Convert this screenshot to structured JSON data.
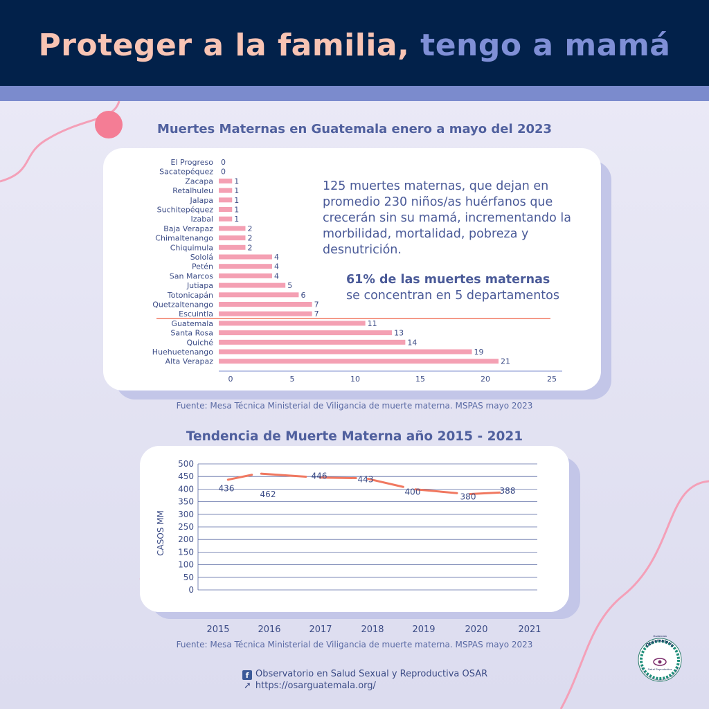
{
  "header": {
    "title_part1": "Proteger a la familia,",
    "title_part2": "tengo a mamá"
  },
  "bar_section": {
    "title": "Muertes Maternas en Guatemala enero a mayo del 2023",
    "paragraph": "125 muertes maternas, que dejan en promedio 230 niños/as huérfanos que crecerán sin su mamá, incrementando la morbilidad, mortalidad, pobreza y desnutrición.",
    "highlight_bold": "61% de las muertes maternas",
    "highlight_rest": "se concentran en 5 departamentos",
    "source": "Fuente: Mesa Técnica Ministerial de Viligancia de muerte materna. MSPAS mayo 2023"
  },
  "line_section": {
    "title": "Tendencia de Muerte Materna año 2015 - 2021",
    "source": "Fuente: Mesa Técnica Ministerial de Viligancia de muerte materna. MSPAS mayo 2023"
  },
  "chart_data": [
    {
      "type": "bar",
      "orientation": "horizontal",
      "categories": [
        "El Progreso",
        "Sacatepéquez",
        "Zacapa",
        "Retalhuleu",
        "Jalapa",
        "Suchitepéquez",
        "Izabal",
        "Baja Verapaz",
        "Chimaltenango",
        "Chiquimula",
        "Sololá",
        "Petén",
        "San Marcos",
        "Jutiapa",
        "Totonicapán",
        "Quetzaltenango",
        "Escuintla",
        "Guatemala",
        "Santa Rosa",
        "Quiché",
        "Huehuetenango",
        "Alta Verapaz"
      ],
      "values": [
        0,
        0,
        1,
        1,
        1,
        1,
        1,
        2,
        2,
        2,
        4,
        4,
        4,
        5,
        6,
        7,
        7,
        11,
        13,
        14,
        19,
        21
      ],
      "xlim": [
        0,
        25
      ],
      "xticks": [
        0,
        5,
        10,
        15,
        20,
        25
      ],
      "bar_color": "#f4a0b3",
      "divider_color": "#f07860"
    },
    {
      "type": "line",
      "x": [
        2015,
        2016,
        2017,
        2018,
        2019,
        2020,
        2021
      ],
      "values": [
        436,
        462,
        446,
        443,
        400,
        380,
        388
      ],
      "data_labels": [
        "436",
        "462",
        "446",
        "443",
        "400",
        "380",
        "388"
      ],
      "ylabel": "CASOS MM",
      "ylim": [
        0,
        500
      ],
      "yticks": [
        0,
        50,
        100,
        150,
        200,
        250,
        300,
        350,
        400,
        450,
        500
      ],
      "line_color": "#f07860"
    }
  ],
  "footer": {
    "facebook_icon": "f",
    "facebook_text": "Observatorio en Salud Sexual y Reproductiva OSAR",
    "link_icon": "➚",
    "url": "https://osarguatemala.org/"
  },
  "logo": {
    "icon": "osar-logo-icon",
    "text_top": "Observatorio",
    "text_mid": "Salud Reproductiva",
    "text_small_top": "Guatemala",
    "text_ring": "Por la inversión a la implementación de las Políticas Públicas"
  },
  "colors": {
    "navy": "#02214a",
    "band": "#7b8bcd",
    "title_pink": "#f8c4b4",
    "title_blue": "#7f8fd6",
    "text_blue": "#4a5a98",
    "pink_line": "#f4a0b3"
  }
}
